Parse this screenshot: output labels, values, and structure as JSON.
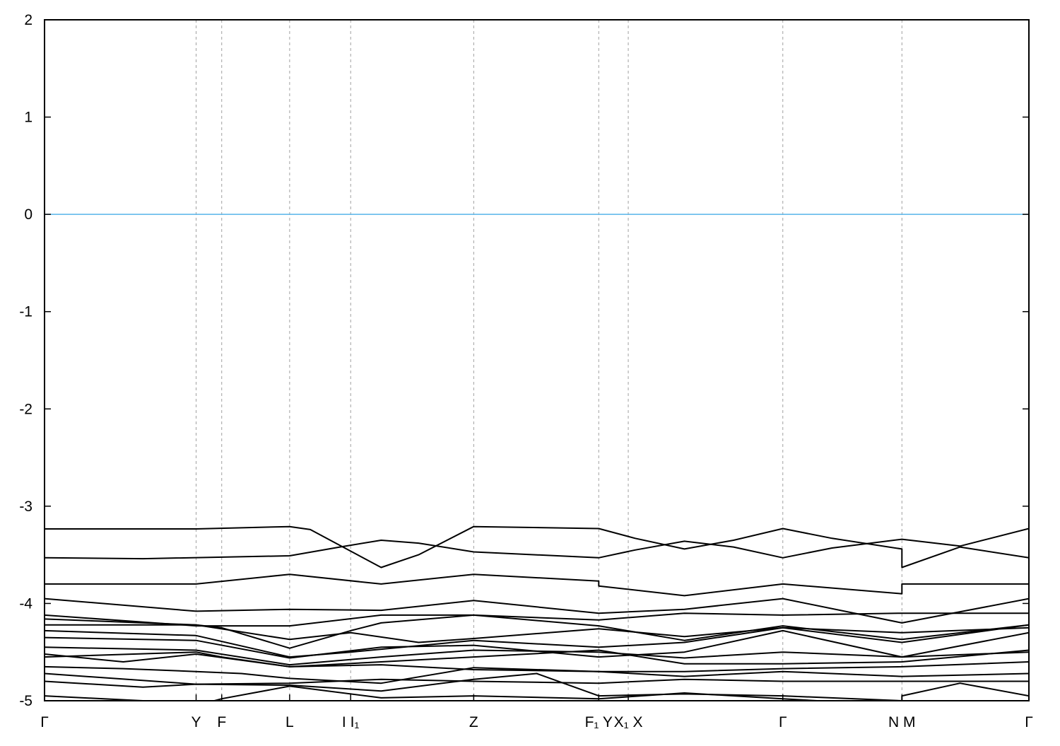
{
  "chart_data": {
    "type": "line",
    "title": "",
    "xlabel": "",
    "ylabel": "",
    "ylim": [
      -5,
      2
    ],
    "xlim": [
      0,
      1
    ],
    "yticks": [
      2,
      1,
      0,
      -1,
      -2,
      -3,
      -4,
      -5
    ],
    "xticks": [
      {
        "k": 0,
        "label": "Γ"
      },
      {
        "k": 0.154,
        "label": "Y"
      },
      {
        "k": 0.18,
        "label": "F"
      },
      {
        "k": 0.249,
        "label": "L"
      },
      {
        "k": 0.311,
        "label": "I  I₁"
      },
      {
        "k": 0.436,
        "label": "Z"
      },
      {
        "k": 0.563,
        "label": "F₁ Y"
      },
      {
        "k": 0.593,
        "label": "X₁ X"
      },
      {
        "k": 0.75,
        "label": "Γ"
      },
      {
        "k": 0.871,
        "label": "N M"
      },
      {
        "k": 1.0,
        "label": "Γ"
      }
    ],
    "fermi_level": 0,
    "colors": {
      "bands": "#000000",
      "fermi_line": "#56b4e9",
      "gridlines": "#a0a0a0"
    },
    "grid": "vertical dashed at high-symmetry points",
    "series": [
      {
        "points": [
          [
            0,
            -3.234
          ],
          [
            0.154,
            -3.234
          ],
          [
            0.249,
            -3.21
          ],
          [
            0.27,
            -3.24
          ],
          [
            0.342,
            -3.63
          ],
          [
            0.38,
            -3.5
          ],
          [
            0.436,
            -3.21
          ],
          [
            0.563,
            -3.23
          ],
          [
            0.6,
            -3.33
          ],
          [
            0.65,
            -3.44
          ],
          [
            0.7,
            -3.35
          ],
          [
            0.75,
            -3.23
          ],
          [
            0.8,
            -3.33
          ],
          [
            0.871,
            -3.44
          ],
          [
            0.871,
            -3.63
          ],
          [
            0.93,
            -3.42
          ],
          [
            1.0,
            -3.53
          ]
        ]
      },
      {
        "points": [
          [
            0,
            -3.53
          ],
          [
            0.1,
            -3.54
          ],
          [
            0.249,
            -3.51
          ],
          [
            0.3,
            -3.42
          ],
          [
            0.342,
            -3.35
          ],
          [
            0.38,
            -3.38
          ],
          [
            0.436,
            -3.47
          ],
          [
            0.563,
            -3.53
          ],
          [
            0.6,
            -3.45
          ],
          [
            0.65,
            -3.36
          ],
          [
            0.7,
            -3.42
          ],
          [
            0.75,
            -3.53
          ],
          [
            0.8,
            -3.43
          ],
          [
            0.871,
            -3.34
          ],
          [
            0.93,
            -3.41
          ],
          [
            1.0,
            -3.23
          ]
        ]
      },
      {
        "points": [
          [
            0,
            -3.8
          ],
          [
            0.154,
            -3.8
          ],
          [
            0.249,
            -3.7
          ],
          [
            0.342,
            -3.8
          ],
          [
            0.436,
            -3.7
          ],
          [
            0.563,
            -3.77
          ],
          [
            0.563,
            -3.82
          ],
          [
            0.65,
            -3.92
          ],
          [
            0.75,
            -3.8
          ],
          [
            0.871,
            -3.9
          ],
          [
            0.871,
            -3.8
          ],
          [
            1.0,
            -3.8
          ]
        ]
      },
      {
        "points": [
          [
            0,
            -3.95
          ],
          [
            0.154,
            -4.08
          ],
          [
            0.249,
            -4.06
          ],
          [
            0.342,
            -4.07
          ],
          [
            0.436,
            -3.97
          ],
          [
            0.563,
            -4.1
          ],
          [
            0.65,
            -4.06
          ],
          [
            0.75,
            -3.95
          ],
          [
            0.871,
            -4.2
          ],
          [
            1.0,
            -3.95
          ]
        ]
      },
      {
        "points": [
          [
            0,
            -4.12
          ],
          [
            0.154,
            -4.23
          ],
          [
            0.249,
            -4.23
          ],
          [
            0.342,
            -4.12
          ],
          [
            0.436,
            -4.12
          ],
          [
            0.563,
            -4.17
          ],
          [
            0.65,
            -4.1
          ],
          [
            0.75,
            -4.12
          ],
          [
            0.871,
            -4.1
          ],
          [
            1.0,
            -4.1
          ]
        ]
      },
      {
        "points": [
          [
            0,
            -4.16
          ],
          [
            0.154,
            -4.22
          ],
          [
            0.18,
            -4.25
          ],
          [
            0.249,
            -4.46
          ],
          [
            0.311,
            -4.28
          ],
          [
            0.342,
            -4.2
          ],
          [
            0.436,
            -4.12
          ],
          [
            0.563,
            -4.23
          ],
          [
            0.65,
            -4.38
          ],
          [
            0.75,
            -4.23
          ],
          [
            0.871,
            -4.37
          ],
          [
            1.0,
            -4.22
          ]
        ]
      },
      {
        "points": [
          [
            0,
            -4.22
          ],
          [
            0.154,
            -4.22
          ],
          [
            0.249,
            -4.37
          ],
          [
            0.311,
            -4.3
          ],
          [
            0.38,
            -4.4
          ],
          [
            0.436,
            -4.36
          ],
          [
            0.563,
            -4.26
          ],
          [
            0.65,
            -4.34
          ],
          [
            0.75,
            -4.25
          ],
          [
            0.871,
            -4.3
          ],
          [
            1.0,
            -4.25
          ]
        ]
      },
      {
        "points": [
          [
            0,
            -4.28
          ],
          [
            0.154,
            -4.33
          ],
          [
            0.249,
            -4.55
          ],
          [
            0.311,
            -4.5
          ],
          [
            0.436,
            -4.38
          ],
          [
            0.563,
            -4.45
          ],
          [
            0.65,
            -4.4
          ],
          [
            0.75,
            -4.25
          ],
          [
            0.871,
            -4.4
          ],
          [
            1.0,
            -4.22
          ]
        ]
      },
      {
        "points": [
          [
            0,
            -4.35
          ],
          [
            0.154,
            -4.38
          ],
          [
            0.249,
            -4.56
          ],
          [
            0.342,
            -4.45
          ],
          [
            0.436,
            -4.43
          ],
          [
            0.563,
            -4.55
          ],
          [
            0.65,
            -4.5
          ],
          [
            0.75,
            -4.28
          ],
          [
            0.871,
            -4.55
          ],
          [
            1.0,
            -4.3
          ]
        ]
      },
      {
        "points": [
          [
            0,
            -4.45
          ],
          [
            0.154,
            -4.48
          ],
          [
            0.249,
            -4.63
          ],
          [
            0.342,
            -4.55
          ],
          [
            0.436,
            -4.48
          ],
          [
            0.563,
            -4.5
          ],
          [
            0.65,
            -4.56
          ],
          [
            0.75,
            -4.5
          ],
          [
            0.871,
            -4.55
          ],
          [
            1.0,
            -4.5
          ]
        ]
      },
      {
        "points": [
          [
            0,
            -4.52
          ],
          [
            0.08,
            -4.6
          ],
          [
            0.154,
            -4.52
          ],
          [
            0.249,
            -4.65
          ],
          [
            0.342,
            -4.6
          ],
          [
            0.436,
            -4.55
          ],
          [
            0.563,
            -4.48
          ],
          [
            0.65,
            -4.62
          ],
          [
            0.75,
            -4.62
          ],
          [
            0.871,
            -4.6
          ],
          [
            1.0,
            -4.48
          ]
        ]
      },
      {
        "points": [
          [
            0,
            -4.55
          ],
          [
            0.154,
            -4.5
          ],
          [
            0.18,
            -4.55
          ],
          [
            0.249,
            -4.65
          ],
          [
            0.342,
            -4.63
          ],
          [
            0.436,
            -4.68
          ],
          [
            0.563,
            -4.7
          ],
          [
            0.65,
            -4.7
          ],
          [
            0.75,
            -4.67
          ],
          [
            0.871,
            -4.65
          ],
          [
            1.0,
            -4.6
          ]
        ]
      },
      {
        "points": [
          [
            0,
            -4.65
          ],
          [
            0.08,
            -4.67
          ],
          [
            0.154,
            -4.7
          ],
          [
            0.2,
            -4.72
          ],
          [
            0.249,
            -4.77
          ],
          [
            0.342,
            -4.82
          ],
          [
            0.436,
            -4.66
          ],
          [
            0.563,
            -4.7
          ],
          [
            0.65,
            -4.75
          ],
          [
            0.75,
            -4.7
          ],
          [
            0.871,
            -4.75
          ],
          [
            1.0,
            -4.72
          ]
        ]
      },
      {
        "points": [
          [
            0,
            -4.72
          ],
          [
            0.154,
            -4.83
          ],
          [
            0.249,
            -4.82
          ],
          [
            0.342,
            -4.78
          ],
          [
            0.436,
            -4.8
          ],
          [
            0.563,
            -4.82
          ],
          [
            0.65,
            -4.78
          ],
          [
            0.75,
            -4.8
          ],
          [
            0.871,
            -4.8
          ],
          [
            1.0,
            -4.8
          ]
        ]
      },
      {
        "points": [
          [
            0,
            -4.8
          ],
          [
            0.1,
            -4.86
          ],
          [
            0.154,
            -4.83
          ],
          [
            0.249,
            -4.84
          ],
          [
            0.342,
            -4.9
          ],
          [
            0.436,
            -4.78
          ],
          [
            0.5,
            -4.72
          ],
          [
            0.563,
            -4.95
          ],
          [
            0.65,
            -4.93
          ],
          [
            0.75,
            -4.95
          ],
          [
            0.871,
            -5.0
          ],
          [
            0.871,
            -4.95
          ],
          [
            0.93,
            -4.82
          ],
          [
            1.0,
            -4.95
          ]
        ]
      },
      {
        "points": [
          [
            0,
            -4.95
          ],
          [
            0.1,
            -5.0
          ],
          [
            0.154,
            -5.05
          ],
          [
            0.18,
            -4.98
          ],
          [
            0.249,
            -4.85
          ],
          [
            0.342,
            -4.97
          ],
          [
            0.436,
            -4.95
          ],
          [
            0.563,
            -4.98
          ],
          [
            0.65,
            -4.92
          ],
          [
            0.75,
            -4.98
          ],
          [
            0.871,
            -5.05
          ]
        ]
      }
    ]
  }
}
